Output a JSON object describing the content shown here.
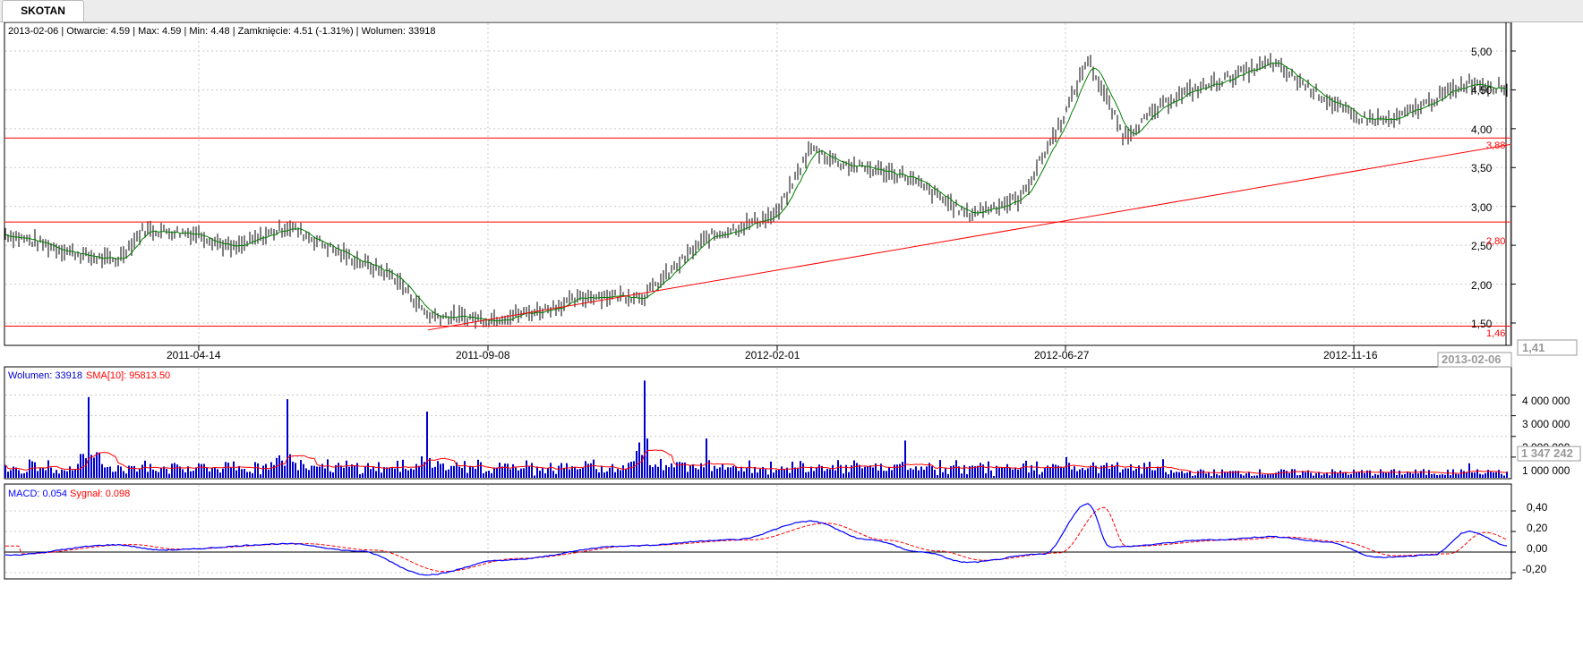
{
  "tab": {
    "label": "SKOTAN"
  },
  "price_panel": {
    "info": "2013-02-06 | Otwarcie: 4.59 | Max: 4.59 | Min: 4.48 | Zamknięcie: 4.51 (-1.31%)  | Wolumen: 33918",
    "cursor_price_label": "1,41",
    "cursor_date_label": "2013-02-06",
    "x_ticks": [
      "2011-04-14",
      "2011-09-08",
      "2012-02-01",
      "2012-06-27",
      "2012-11-16"
    ],
    "y_ticks": [
      "5,00",
      "4,50",
      "4,00",
      "3,50",
      "3,00",
      "2,50",
      "2,00",
      "1,50"
    ],
    "hlines": [
      {
        "label": "3,88",
        "value": 3.88
      },
      {
        "label": "2,80",
        "value": 2.8
      },
      {
        "label": "1,46",
        "value": 1.46
      }
    ]
  },
  "volume_panel": {
    "label_volume": "Wolumen: 33918",
    "label_sma": "SMA[10]: 95813.50",
    "y_ticks": [
      "4 000 000",
      "3 000 000",
      "2 000 000",
      "1 000 000"
    ],
    "cursor_label": "1 347 242"
  },
  "macd_panel": {
    "label_macd": "MACD: 0.054",
    "label_signal": "Sygnał: 0.098",
    "y_ticks": [
      "0,40",
      "0,20",
      "0,00",
      "-0,20"
    ]
  },
  "colors": {
    "candle": "#000000",
    "sma_price": "#008000",
    "support_lines": "#ff0000",
    "volume_bars": "#0000cc",
    "volume_sma": "#ff0000",
    "macd": "#0000ff",
    "signal": "#ff0000",
    "grid": "#c8c8c8"
  },
  "chart_data": [
    {
      "type": "line",
      "subtype": "ohlc-bars",
      "ylim": [
        1.4,
        5.2
      ],
      "x_dates": [
        "2010-11",
        "2011-04-14",
        "2011-09-08",
        "2012-02-01",
        "2012-06-27",
        "2012-11-16",
        "2013-02-06"
      ],
      "close_path": [
        [
          "2010-11",
          2.65
        ],
        [
          "2011-01",
          2.35
        ],
        [
          "2011-02",
          2.3
        ],
        [
          "2011-03",
          2.7
        ],
        [
          "2011-04-14",
          2.65
        ],
        [
          "2011-05",
          2.45
        ],
        [
          "2011-06",
          2.75
        ],
        [
          "2011-07",
          2.4
        ],
        [
          "2011-08",
          2.1
        ],
        [
          "2011-08-20",
          1.6
        ],
        [
          "2011-09-08",
          1.55
        ],
        [
          "2011-10",
          1.65
        ],
        [
          "2011-11",
          1.85
        ],
        [
          "2011-12",
          1.85
        ],
        [
          "2012-01",
          2.6
        ],
        [
          "2012-02-01",
          2.9
        ],
        [
          "2012-02-20",
          3.75
        ],
        [
          "2012-03",
          3.55
        ],
        [
          "2012-04",
          3.4
        ],
        [
          "2012-05",
          2.9
        ],
        [
          "2012-06",
          3.1
        ],
        [
          "2012-06-27",
          4.2
        ],
        [
          "2012-07",
          4.9
        ],
        [
          "2012-08",
          3.9
        ],
        [
          "2012-09",
          4.4
        ],
        [
          "2012-10",
          4.85
        ],
        [
          "2012-11-16",
          4.15
        ],
        [
          "2012-12",
          4.1
        ],
        [
          "2013-01",
          4.6
        ],
        [
          "2013-02-06",
          4.51
        ]
      ],
      "hlines": [
        3.88,
        2.8,
        1.46
      ],
      "trendline": [
        [
          "2011-08-20",
          1.41
        ],
        [
          "2013-02-06",
          3.8
        ]
      ]
    },
    {
      "type": "bar",
      "name": "Wolumen",
      "ylim": [
        0,
        4800000
      ],
      "sma": 95813.5,
      "peaks": [
        [
          "2011-01",
          3900000
        ],
        [
          "2011-06",
          3800000
        ],
        [
          "2011-08-20",
          3200000
        ],
        [
          "2011-12",
          4700000
        ],
        [
          "2012-01",
          1900000
        ],
        [
          "2012-04",
          1800000
        ],
        [
          "2012-06-27",
          1000000
        ],
        [
          "2013-01",
          700000
        ]
      ]
    },
    {
      "type": "line",
      "name": "MACD",
      "ylim": [
        -0.25,
        0.5
      ],
      "series": [
        {
          "name": "MACD",
          "last": 0.054,
          "peak": [
            [
              "2011-02",
              0.07
            ],
            [
              "2011-06",
              0.08
            ],
            [
              "2011-08-20",
              -0.22
            ],
            [
              "2012-02-20",
              0.3
            ],
            [
              "2012-05",
              -0.1
            ],
            [
              "2012-07",
              0.47
            ],
            [
              "2012-10",
              0.15
            ],
            [
              "2013-01",
              0.2
            ]
          ]
        },
        {
          "name": "Sygnał",
          "last": 0.098
        }
      ]
    }
  ]
}
